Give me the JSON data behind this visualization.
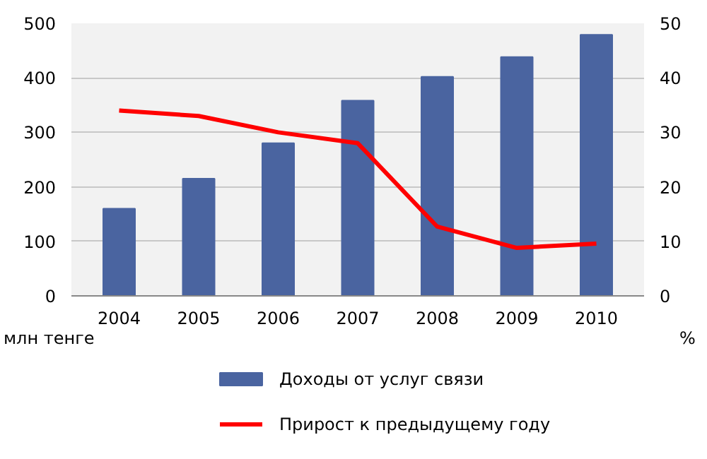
{
  "chart_data": {
    "type": "bar",
    "categories": [
      "2004",
      "2005",
      "2006",
      "2007",
      "2008",
      "2009",
      "2010"
    ],
    "series": [
      {
        "name": "Доходы от услуг связи",
        "color": "#4a64a0",
        "values": [
          160,
          215,
          280,
          358,
          402,
          438,
          479
        ]
      },
      {
        "name": "Прирост к предыдущему году",
        "color": "#ff0000",
        "type": "line",
        "axis": "y2",
        "values": [
          34,
          33,
          30,
          28,
          12.7,
          8.8,
          9.6
        ]
      }
    ],
    "ylabel": "млн тенге",
    "y2label": "%",
    "ylim": [
      0,
      500
    ],
    "yticks": [
      0,
      100,
      200,
      300,
      400,
      500
    ],
    "y2lim": [
      0,
      50
    ],
    "y2ticks": [
      0,
      10,
      20,
      30,
      40,
      50
    ],
    "grid": "y",
    "legend": "bottom"
  }
}
